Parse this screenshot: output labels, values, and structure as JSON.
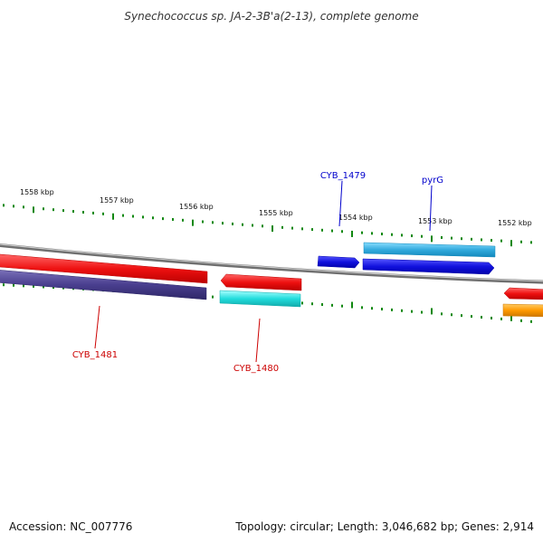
{
  "title": "Synechococcus sp. JA-2-3B'a(2-13), complete genome",
  "footer": {
    "accession": "Accession: NC_007776",
    "summary": "Topology: circular; Length: 3,046,682 bp; Genes: 2,914"
  },
  "ruler": {
    "labels": [
      "1558 kbp",
      "1557 kbp",
      "1556 kbp",
      "1555 kbp",
      "1554 kbp",
      "1553 kbp",
      "1552 kbp"
    ]
  },
  "gene_labels": {
    "cyb1479": "CYB_1479",
    "pyrg": "pyrG",
    "cyb1481": "CYB_1481",
    "cyb1480": "CYB_1480"
  },
  "colors": {
    "tick": "#118811",
    "backbone": "#888888",
    "red": "#ee1111",
    "navy": "#4a3f8f",
    "cyan": "#22dddd",
    "blue": "#1111dd",
    "skyblue": "#33aadd",
    "orange": "#ff9900",
    "label_blue": "#0000cc",
    "label_red": "#cc0000"
  }
}
